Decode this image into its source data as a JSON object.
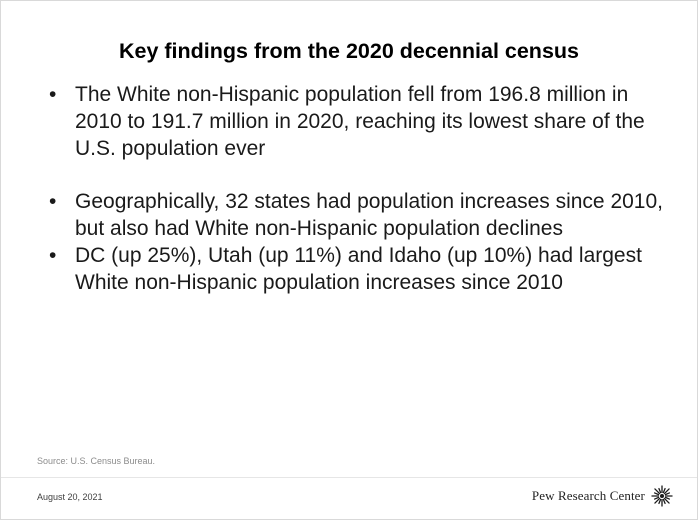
{
  "slide": {
    "title": "Key findings from the 2020 decennial census",
    "bullet_symbol": "•",
    "bullets": [
      "The White non-Hispanic population fell from 196.8 million in 2010 to 191.7 million in 2020, reaching its lowest share of the U.S. population ever",
      "Geographically, 32 states had population increases since 2010, but also had White non-Hispanic population declines",
      "DC (up 25%), Utah (up 11%) and Idaho (up 10%) had largest White non-Hispanic population increases since 2010"
    ],
    "source": "Source: U.S. Census Bureau.",
    "date": "August 20, 2021",
    "brand": "Pew Research Center",
    "brand_logo_icon": "sunburst-icon"
  }
}
